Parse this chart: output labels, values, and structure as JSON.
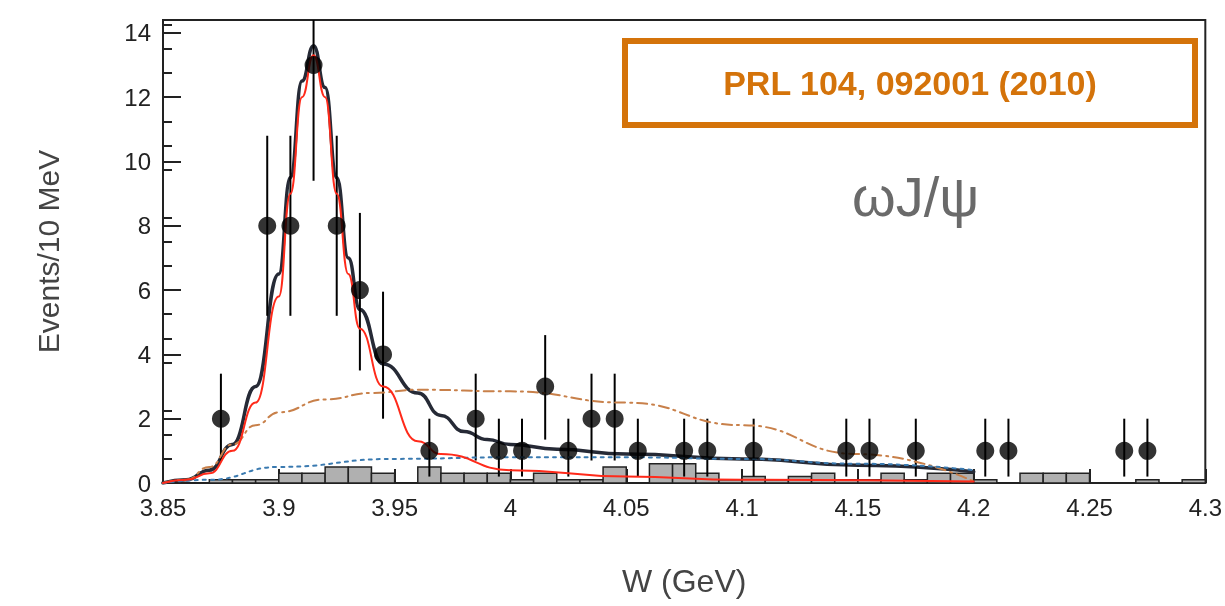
{
  "chart_data": {
    "type": "scatter",
    "xlabel": "W (GeV)",
    "ylabel": "Events/10 MeV",
    "annotations": [
      "PRL 104, 092001 (2010)",
      "ωJ/ψ"
    ],
    "xlim": [
      3.85,
      4.3
    ],
    "xticks": [
      3.85,
      3.9,
      3.95,
      4,
      4.05,
      4.1,
      4.15,
      4.2,
      4.25,
      4.3
    ],
    "ylim": [
      0,
      14.4
    ],
    "yticks": [
      0,
      2,
      4,
      6,
      8,
      10,
      12,
      14
    ],
    "grid": false,
    "series": [
      {
        "type": "histogram",
        "color": "#b0b0b0",
        "bins": [
          3.85,
          3.86,
          3.87,
          3.88,
          3.89,
          3.9,
          3.91,
          3.92,
          3.93,
          3.94,
          3.95,
          3.96,
          3.97,
          3.98,
          3.99,
          4.0,
          4.01,
          4.02,
          4.03,
          4.04,
          4.05,
          4.06,
          4.07,
          4.08,
          4.09,
          4.1,
          4.11,
          4.12,
          4.13,
          4.14,
          4.15,
          4.16,
          4.17,
          4.18,
          4.19,
          4.2,
          4.21,
          4.22,
          4.23,
          4.24,
          4.25,
          4.26,
          4.27,
          4.28,
          4.29,
          4.3
        ],
        "values": [
          0,
          0,
          0.1,
          0.1,
          0.1,
          0.3,
          0.3,
          0.5,
          0.5,
          0.3,
          0,
          0.5,
          0.3,
          0.3,
          0.3,
          0.1,
          0.3,
          0.1,
          0.1,
          0.5,
          0,
          0.6,
          0.6,
          0.3,
          0.1,
          0.2,
          0.1,
          0.2,
          0.3,
          0.1,
          0.1,
          0.3,
          0.1,
          0.3,
          0.3,
          0.1,
          0,
          0.3,
          0.3,
          0.3,
          0,
          0,
          0.1,
          0,
          0.1
        ]
      },
      {
        "type": "line",
        "color": "#c8804a",
        "line_style": "dashdot",
        "marker": "none",
        "x": [
          3.85,
          3.86,
          3.87,
          3.88,
          3.89,
          3.9,
          3.92,
          3.94,
          3.96,
          4.0,
          4.05,
          4.1,
          4.15,
          4.2
        ],
        "values": [
          0,
          0.1,
          0.5,
          1.2,
          1.8,
          2.2,
          2.6,
          2.8,
          2.9,
          2.85,
          2.5,
          1.8,
          0.9,
          0.05
        ]
      },
      {
        "type": "line",
        "color": "#3a7ab0",
        "line_style": "dotted",
        "marker": "none",
        "x": [
          3.85,
          3.87,
          3.9,
          3.95,
          4.0,
          4.05,
          4.1,
          4.15,
          4.2
        ],
        "values": [
          0,
          0.1,
          0.5,
          0.75,
          0.8,
          0.8,
          0.75,
          0.6,
          0.4
        ]
      },
      {
        "type": "line",
        "color": "#ff2a1a",
        "line_style": "solid",
        "marker": "none",
        "x": [
          3.85,
          3.86,
          3.87,
          3.88,
          3.89,
          3.9,
          3.905,
          3.91,
          3.915,
          3.92,
          3.925,
          3.93,
          3.935,
          3.945,
          3.96,
          3.97,
          4.0,
          4.05,
          4.1,
          4.2
        ],
        "values": [
          0,
          0.1,
          0.3,
          1,
          2.5,
          5.8,
          9,
          12,
          13.3,
          12,
          9,
          6.5,
          4.8,
          3,
          1.3,
          0.9,
          0.4,
          0.2,
          0.1,
          0.05
        ]
      },
      {
        "type": "line",
        "color": "#262a36",
        "line_style": "solid",
        "marker": "none",
        "x": [
          3.85,
          3.86,
          3.87,
          3.88,
          3.89,
          3.9,
          3.905,
          3.91,
          3.915,
          3.92,
          3.925,
          3.93,
          3.935,
          3.945,
          3.96,
          3.97,
          3.98,
          3.99,
          4.0,
          4.02,
          4.05,
          4.1,
          4.15,
          4.2
        ],
        "values": [
          0,
          0.1,
          0.4,
          1.2,
          3,
          6.5,
          9.5,
          12.5,
          13.6,
          12.3,
          9.5,
          7,
          5.4,
          3.7,
          2.8,
          2.1,
          1.6,
          1.35,
          1.2,
          1.05,
          0.9,
          0.75,
          0.55,
          0.35
        ]
      },
      {
        "color": "#000000",
        "marker": "circle",
        "x": [
          3.875,
          3.895,
          3.905,
          3.915,
          3.925,
          3.935,
          3.945,
          3.965,
          3.985,
          3.995,
          4.005,
          4.015,
          4.025,
          4.035,
          4.045,
          4.055,
          4.075,
          4.085,
          4.105,
          4.145,
          4.155,
          4.175,
          4.205,
          4.215,
          4.265,
          4.275
        ],
        "values": [
          2,
          8,
          8,
          13,
          8,
          6,
          4,
          1,
          2,
          1,
          1,
          3,
          1,
          2,
          2,
          1,
          1,
          1,
          1,
          1,
          1,
          1,
          1,
          1,
          1,
          1
        ],
        "errors": [
          [
            0.7,
            3.4
          ],
          [
            5.2,
            10.8
          ],
          [
            5.2,
            10.8
          ],
          [
            9.4,
            14.4
          ],
          [
            5.2,
            10.8
          ],
          [
            3.5,
            8.4
          ],
          [
            2,
            5.95
          ],
          [
            0.2,
            2
          ],
          [
            0.7,
            3.4
          ],
          [
            0.2,
            2
          ],
          [
            0.2,
            2
          ],
          [
            1.35,
            4.6
          ],
          [
            0.2,
            2
          ],
          [
            0.7,
            3.4
          ],
          [
            0.7,
            3.4
          ],
          [
            0.2,
            2
          ],
          [
            0.2,
            2
          ],
          [
            0.2,
            2
          ],
          [
            0.2,
            2
          ],
          [
            0.2,
            2
          ],
          [
            0.2,
            2
          ],
          [
            0.2,
            2
          ],
          [
            0.2,
            2
          ],
          [
            0.2,
            2
          ],
          [
            0.2,
            2
          ],
          [
            0.2,
            2
          ]
        ]
      }
    ]
  }
}
